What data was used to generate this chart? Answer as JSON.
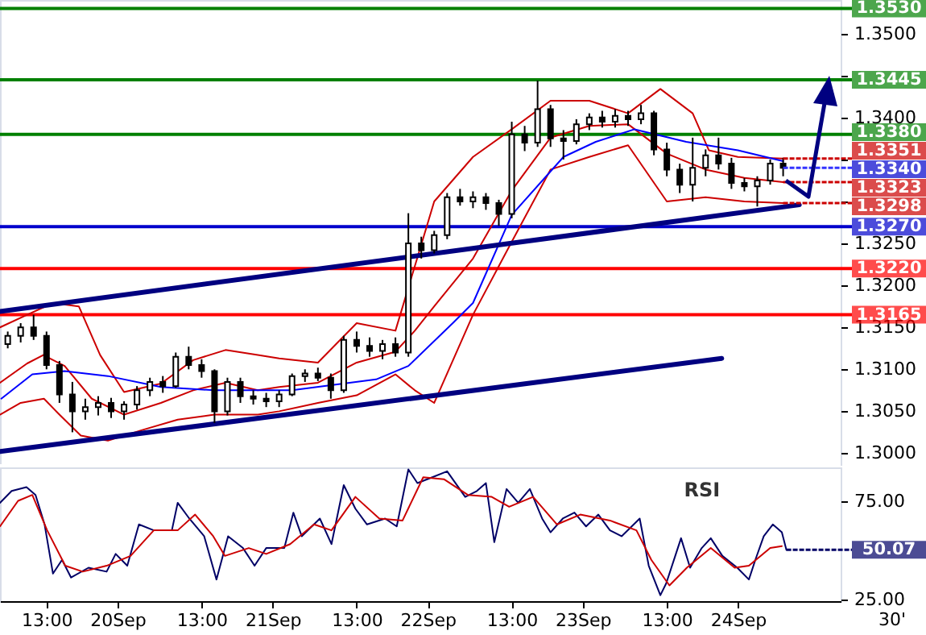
{
  "chart_data": [
    {
      "type": "candlestick",
      "tick_labels": "y",
      "xlim": [
        "--09-19T05:48",
        "--09-24T15:54"
      ],
      "ylim": [
        1.2987,
        1.354
      ],
      "yticks": [
        {
          "value": 1.3,
          "label": "1.3000"
        },
        {
          "value": 1.305,
          "label": "1.3050"
        },
        {
          "value": 1.31,
          "label": "1.3100"
        },
        {
          "value": 1.315,
          "label": "1.3150"
        },
        {
          "value": 1.32,
          "label": "1.3200"
        },
        {
          "value": 1.325,
          "label": "1.3250"
        },
        {
          "value": 1.33,
          "label": null
        },
        {
          "value": 1.335,
          "label": null
        },
        {
          "value": 1.34,
          "label": "1.3400"
        },
        {
          "value": 1.345,
          "label": null
        },
        {
          "value": 1.35,
          "label": "1.3500"
        }
      ],
      "x": [
        "--09-19T07:00",
        "--09-19T09:00",
        "--09-19T11:00",
        "--09-19T13:00",
        "--09-19T15:00",
        "--09-19T17:00",
        "--09-19T19:00",
        "--09-19T21:00",
        "--09-19T23:00",
        "--09-20T01:00",
        "--09-20T03:00",
        "--09-20T05:00",
        "--09-20T07:00",
        "--09-20T09:00",
        "--09-20T11:00",
        "--09-20T13:00",
        "--09-20T15:00",
        "--09-20T17:00",
        "--09-20T19:00",
        "--09-20T21:00",
        "--09-20T23:00",
        "--09-21T01:00",
        "--09-21T03:00",
        "--09-21T05:00",
        "--09-21T07:00",
        "--09-21T09:00",
        "--09-21T11:00",
        "--09-21T13:00",
        "--09-21T15:00",
        "--09-21T17:00",
        "--09-21T19:00",
        "--09-21T21:00",
        "--09-21T23:00",
        "--09-22T01:00",
        "--09-22T03:00",
        "--09-22T05:00",
        "--09-22T07:00",
        "--09-22T09:00",
        "--09-22T11:00",
        "--09-22T13:00",
        "--09-22T15:00",
        "--09-22T17:00",
        "--09-22T19:00",
        "--09-22T21:00",
        "--09-22T23:00",
        "--09-23T01:00",
        "--09-23T03:00",
        "--09-23T05:00",
        "--09-23T07:00",
        "--09-23T09:00",
        "--09-23T11:00",
        "--09-23T13:00",
        "--09-23T15:00",
        "--09-23T17:00",
        "--09-23T19:00",
        "--09-23T21:00",
        "--09-23T23:00",
        "--09-24T01:00",
        "--09-24T03:00",
        "--09-24T05:00",
        "--09-24T07:00"
      ],
      "ohlc": [
        [
          1.313,
          1.3145,
          1.3125,
          1.314
        ],
        [
          1.314,
          1.3155,
          1.3132,
          1.315
        ],
        [
          1.315,
          1.3165,
          1.3135,
          1.314
        ],
        [
          1.314,
          1.3145,
          1.31,
          1.3105
        ],
        [
          1.3105,
          1.311,
          1.306,
          1.307
        ],
        [
          1.307,
          1.3085,
          1.3025,
          1.305
        ],
        [
          1.305,
          1.3065,
          1.304,
          1.3055
        ],
        [
          1.3055,
          1.3068,
          1.3045,
          1.306
        ],
        [
          1.306,
          1.3066,
          1.3042,
          1.305
        ],
        [
          1.305,
          1.3062,
          1.304,
          1.3058
        ],
        [
          1.3058,
          1.308,
          1.3052,
          1.3075
        ],
        [
          1.3075,
          1.309,
          1.3068,
          1.3085
        ],
        [
          1.3085,
          1.3092,
          1.3072,
          1.308
        ],
        [
          1.308,
          1.312,
          1.3078,
          1.3115
        ],
        [
          1.3115,
          1.3127,
          1.31,
          1.3105
        ],
        [
          1.3105,
          1.3112,
          1.309,
          1.3098
        ],
        [
          1.3098,
          1.31,
          1.3036,
          1.305
        ],
        [
          1.305,
          1.309,
          1.3045,
          1.3085
        ],
        [
          1.3085,
          1.309,
          1.306,
          1.3068
        ],
        [
          1.3068,
          1.3075,
          1.3058,
          1.3065
        ],
        [
          1.3065,
          1.3072,
          1.3055,
          1.3062
        ],
        [
          1.3062,
          1.3075,
          1.3055,
          1.307
        ],
        [
          1.307,
          1.3095,
          1.3068,
          1.3092
        ],
        [
          1.3092,
          1.31,
          1.3085,
          1.3095
        ],
        [
          1.3095,
          1.3102,
          1.3086,
          1.309
        ],
        [
          1.309,
          1.3095,
          1.3065,
          1.3075
        ],
        [
          1.3075,
          1.314,
          1.3072,
          1.3135
        ],
        [
          1.3135,
          1.3145,
          1.312,
          1.3128
        ],
        [
          1.3128,
          1.3138,
          1.3115,
          1.3122
        ],
        [
          1.3122,
          1.3135,
          1.3112,
          1.313
        ],
        [
          1.313,
          1.3138,
          1.3115,
          1.312
        ],
        [
          1.312,
          1.3286,
          1.3115,
          1.325
        ],
        [
          1.325,
          1.3258,
          1.3232,
          1.3242
        ],
        [
          1.3242,
          1.3265,
          1.3238,
          1.326
        ],
        [
          1.326,
          1.331,
          1.3255,
          1.3305
        ],
        [
          1.3305,
          1.3315,
          1.3295,
          1.33
        ],
        [
          1.33,
          1.3312,
          1.3292,
          1.3305
        ],
        [
          1.3305,
          1.331,
          1.329,
          1.3298
        ],
        [
          1.3298,
          1.3302,
          1.3271,
          1.3285
        ],
        [
          1.3285,
          1.3395,
          1.328,
          1.338
        ],
        [
          1.338,
          1.339,
          1.336,
          1.337
        ],
        [
          1.337,
          1.3444,
          1.3365,
          1.341
        ],
        [
          1.341,
          1.3415,
          1.3365,
          1.3375
        ],
        [
          1.3375,
          1.3385,
          1.335,
          1.3372
        ],
        [
          1.3372,
          1.3398,
          1.3368,
          1.3392
        ],
        [
          1.3392,
          1.3405,
          1.3385,
          1.34
        ],
        [
          1.34,
          1.3408,
          1.3388,
          1.3395
        ],
        [
          1.3395,
          1.341,
          1.3388,
          1.3402
        ],
        [
          1.3402,
          1.3408,
          1.339,
          1.3398
        ],
        [
          1.3398,
          1.3415,
          1.3392,
          1.3405
        ],
        [
          1.3405,
          1.3408,
          1.3355,
          1.3362
        ],
        [
          1.3362,
          1.337,
          1.333,
          1.3338
        ],
        [
          1.3338,
          1.3345,
          1.331,
          1.332
        ],
        [
          1.332,
          1.3376,
          1.33,
          1.334
        ],
        [
          1.334,
          1.3362,
          1.333,
          1.3355
        ],
        [
          1.3355,
          1.3376,
          1.3338,
          1.3345
        ],
        [
          1.3345,
          1.3352,
          1.3315,
          1.3322
        ],
        [
          1.3322,
          1.3328,
          1.3312,
          1.3318
        ],
        [
          1.3318,
          1.333,
          1.3294,
          1.3325
        ],
        [
          1.3325,
          1.335,
          1.332,
          1.3345
        ],
        [
          1.3345,
          1.3352,
          1.333,
          1.334
        ]
      ],
      "series": [
        {
          "type": "line",
          "color": "#cc0000",
          "x": [
            "--09-19T05:48",
            "--09-19T10:00",
            "--09-19T14:00",
            "--09-19T18:00",
            "--09-19T21:18",
            "--09-20T01:00",
            "--09-20T06:42",
            "--09-20T11:42",
            "--09-20T16:42",
            "--09-20T21:42",
            "--09-21T01:00",
            "--09-21T07:00",
            "--09-21T13:00",
            "--09-21T19:00",
            "--09-21T22:00",
            "--09-22T01:00",
            "--09-22T07:00",
            "--09-22T13:00",
            "--09-22T19:00",
            "--09-23T01:00",
            "--09-23T07:00",
            "--09-23T12:00",
            "--09-23T17:00",
            "--09-23T19:30",
            "--09-24T00:00",
            "--09-24T07:00"
          ],
          "values": [
            1.315,
            1.3165,
            1.3179,
            1.3175,
            1.3117,
            1.3073,
            1.3083,
            1.3111,
            1.3123,
            1.3117,
            1.3113,
            1.3108,
            1.3155,
            1.3146,
            1.3223,
            1.33,
            1.3353,
            1.3386,
            1.342,
            1.342,
            1.3405,
            1.3434,
            1.3405,
            1.3361,
            1.3353,
            1.3351
          ],
          "value_labels": [
            null,
            null,
            null,
            null,
            null,
            null,
            null,
            null,
            null,
            null,
            null,
            null,
            null,
            null,
            null,
            null,
            null,
            null,
            null,
            null,
            null,
            null,
            null,
            null,
            null,
            "1.3351"
          ]
        },
        {
          "type": "line",
          "color": "#cc0000",
          "x": [
            "--09-19T05:48",
            "--09-19T10:00",
            "--09-19T12:30",
            "--09-19T15:48",
            "--09-19T20:00",
            "--09-20T01:00",
            "--09-20T06:42",
            "--09-20T11:42",
            "--09-20T16:42",
            "--09-20T21:42",
            "--09-21T01:00",
            "--09-21T07:00",
            "--09-21T13:00",
            "--09-21T19:00",
            "--09-21T22:00",
            "--09-22T01:00",
            "--09-22T07:00",
            "--09-22T13:00",
            "--09-22T19:00",
            "--09-23T01:00",
            "--09-23T07:00",
            "--09-23T13:00",
            "--09-23T19:00",
            "--09-24T01:00",
            "--09-24T07:00"
          ],
          "values": [
            1.3084,
            1.3107,
            1.3117,
            1.3104,
            1.3065,
            1.3046,
            1.306,
            1.3075,
            1.3084,
            1.3075,
            1.3079,
            1.3084,
            1.3108,
            1.3121,
            1.3146,
            1.3175,
            1.3232,
            1.3313,
            1.3376,
            1.339,
            1.3392,
            1.3357,
            1.3338,
            1.3328,
            1.3323
          ],
          "value_labels": [
            null,
            null,
            null,
            null,
            null,
            null,
            null,
            null,
            null,
            null,
            null,
            null,
            null,
            null,
            null,
            null,
            null,
            null,
            null,
            null,
            null,
            null,
            null,
            null,
            "1.3323"
          ]
        },
        {
          "type": "line",
          "color": "#cc0000",
          "x": [
            "--09-19T05:48",
            "--09-19T09:00",
            "--09-19T12:36",
            "--09-19T15:00",
            "--09-19T18:18",
            "--09-19T22:30",
            "--09-20T03:30",
            "--09-20T09:18",
            "--09-20T15:00",
            "--09-20T21:42",
            "--09-21T01:00",
            "--09-21T07:00",
            "--09-21T13:00",
            "--09-21T19:00",
            "--09-21T22:00",
            "--09-22T01:00",
            "--09-22T07:00",
            "--09-22T13:00",
            "--09-22T19:00",
            "--09-23T01:00",
            "--09-23T07:00",
            "--09-23T13:00",
            "--09-23T19:00",
            "--09-24T01:00",
            "--09-24T07:00"
          ],
          "values": [
            1.3046,
            1.306,
            1.3065,
            1.3046,
            1.3021,
            1.3015,
            1.3027,
            1.304,
            1.3046,
            1.3046,
            1.305,
            1.306,
            1.3069,
            1.3094,
            1.3075,
            1.306,
            1.3165,
            1.3252,
            1.3338,
            1.3353,
            1.3367,
            1.33,
            1.3305,
            1.33,
            1.3298
          ],
          "value_labels": [
            null,
            null,
            null,
            null,
            null,
            null,
            null,
            null,
            null,
            null,
            null,
            null,
            null,
            null,
            null,
            null,
            null,
            null,
            null,
            null,
            null,
            null,
            null,
            null,
            "1.3298"
          ]
        },
        {
          "type": "line",
          "color": "#0000ff",
          "x": [
            "--09-19T06:00",
            "--09-19T10:48",
            "--09-19T15:48",
            "--09-19T22:30",
            "--09-20T06:42",
            "--09-20T15:00",
            "--09-21T03:00",
            "--09-21T16:00",
            "--09-21T21:00",
            "--09-22T04:00",
            "--09-22T07:00",
            "--09-22T13:00",
            "--09-22T21:00",
            "--09-23T02:00",
            "--09-23T08:00",
            "--09-23T16:00",
            "--09-24T00:00",
            "--09-24T07:00"
          ],
          "values": [
            1.3065,
            1.3094,
            1.3098,
            1.3092,
            1.3079,
            1.3075,
            1.3075,
            1.3088,
            1.3104,
            1.3156,
            1.3179,
            1.3284,
            1.3353,
            1.3371,
            1.3386,
            1.3371,
            1.3361,
            1.3348
          ]
        },
        {
          "type": "line",
          "color": "#000080",
          "x": [
            "--09-19T05:48",
            "--09-24T09:30"
          ],
          "values": [
            1.3169,
            1.3296
          ]
        },
        {
          "type": "line",
          "color": "#000080",
          "x": [
            "--09-19T05:48",
            "--09-23T21:30"
          ],
          "values": [
            1.3002,
            1.3113
          ]
        }
      ],
      "ref_lines": [
        {
          "axis": "y",
          "value": 1.353,
          "label": "1.3530",
          "color": "#008000"
        },
        {
          "axis": "y",
          "value": 1.3445,
          "label": "1.3445",
          "color": "#008000"
        },
        {
          "axis": "y",
          "value": 1.338,
          "label": "1.3380",
          "color": "#008000"
        },
        {
          "axis": "y",
          "value": 1.327,
          "label": "1.3270",
          "color": "#0000cc"
        },
        {
          "axis": "y",
          "value": 1.322,
          "label": "1.3220",
          "color": "#ff0000"
        },
        {
          "axis": "y",
          "value": 1.3165,
          "label": "1.3165",
          "color": "#ff0000"
        }
      ],
      "annotations": [
        {
          "text": "1.3340",
          "x": "--09-24T07:00",
          "y": 1.334
        }
      ]
    },
    {
      "type": "line",
      "xlim": [
        "--09-19T05:48",
        "--09-24T15:54"
      ],
      "ylim": [
        24,
        92
      ],
      "xlabel": "30'",
      "yticks": [
        {
          "value": 25,
          "label": "25.00"
        },
        {
          "value": 75,
          "label": "75.00"
        }
      ],
      "xticks": [
        {
          "value": "--09-19T13:00",
          "label": "13:00"
        },
        {
          "value": "--09-20",
          "label": "20Sep"
        },
        {
          "value": "--09-20T13:00",
          "label": "13:00"
        },
        {
          "value": "--09-21",
          "label": "21Sep"
        },
        {
          "value": "--09-21T13:00",
          "label": "13:00"
        },
        {
          "value": "--09-22",
          "label": "22Sep"
        },
        {
          "value": "--09-22T13:00",
          "label": "13:00"
        },
        {
          "value": "--09-23",
          "label": "23Sep"
        },
        {
          "value": "--09-23T13:00",
          "label": "13:00"
        },
        {
          "value": "--09-24",
          "label": "24Sep"
        }
      ],
      "series": [
        {
          "type": "line",
          "color": "#000066",
          "x": [
            "--09-19T05:48",
            "--09-19T07:36",
            "--09-19T09:54",
            "--09-19T11:18",
            "--09-19T12:42",
            "--09-19T14:00",
            "--09-19T15:24",
            "--09-19T16:48",
            "--09-19T19:30",
            "--09-19T22:18",
            "--09-19T23:42",
            "--09-20T01:30",
            "--09-20T03:18",
            "--09-20T05:36",
            "--09-20T08:24",
            "--09-20T09:18",
            "--09-20T11:06",
            "--09-20T13:24",
            "--09-20T15:18",
            "--09-20T17:06",
            "--09-20T19:24",
            "--09-20T21:12",
            "--09-20T23:00",
            "--09-21T01:48",
            "--09-21T03:12",
            "--09-21T04:30",
            "--09-21T07:18",
            "--09-21T09:06",
            "--09-21T11:00",
            "--09-21T12:48",
            "--09-21T14:36",
            "--09-21T17:24",
            "--09-21T19:12",
            "--09-21T21:00",
            "--09-21T22:24",
            "--09-22T00:42",
            "--09-22T03:00",
            "--09-22T05:48",
            "--09-22T07:36",
            "--09-22T09:00",
            "--09-22T10:18",
            "--09-22T12:12",
            "--09-22T14:00",
            "--09-22T15:48",
            "--09-22T17:42",
            "--09-22T19:00",
            "--09-22T20:54",
            "--09-22T22:42",
            "--09-23T00:30",
            "--09-23T02:24",
            "--09-23T04:12",
            "--09-23T06:00",
            "--09-23T08:48",
            "--09-23T10:12",
            "--09-23T12:00",
            "--09-23T12:54",
            "--09-23T14:18",
            "--09-23T15:12",
            "--09-23T16:36",
            "--09-23T18:24",
            "--09-23T19:48",
            "--09-23T21:36",
            "--09-23T23:54",
            "--09-24T01:42",
            "--09-24T02:42",
            "--09-24T04:00",
            "--09-24T05:24",
            "--09-24T06:48",
            "--09-24T07:30"
          ],
          "values": [
            74,
            80,
            82,
            78,
            63,
            38,
            45,
            36,
            41,
            39,
            48,
            42,
            63,
            60,
            60,
            74,
            66,
            57,
            35,
            57,
            51,
            42,
            51,
            51,
            69,
            57,
            66,
            53,
            83,
            71,
            63,
            66,
            62,
            91,
            84,
            87,
            90,
            77,
            80,
            84,
            54,
            81,
            74,
            81,
            66,
            59,
            66,
            69,
            62,
            68,
            60,
            57,
            66,
            42,
            27,
            33,
            47,
            56,
            41,
            51,
            56,
            47,
            41,
            35,
            45,
            57,
            63,
            59,
            50.07
          ],
          "value_labels": [
            null,
            null,
            null,
            null,
            null,
            null,
            null,
            null,
            null,
            null,
            null,
            null,
            null,
            null,
            null,
            null,
            null,
            null,
            null,
            null,
            null,
            null,
            null,
            null,
            null,
            null,
            null,
            null,
            null,
            null,
            null,
            null,
            null,
            null,
            null,
            null,
            null,
            null,
            null,
            null,
            null,
            null,
            null,
            null,
            null,
            null,
            null,
            null,
            null,
            null,
            null,
            null,
            null,
            null,
            null,
            null,
            null,
            null,
            null,
            null,
            null,
            null,
            null,
            null,
            null,
            null,
            null,
            null,
            "50.07"
          ]
        },
        {
          "type": "line",
          "color": "#cc0000",
          "x": [
            "--09-19T05:48",
            "--09-19T08:36",
            "--09-19T10:48",
            "--09-19T13:06",
            "--09-19T15:54",
            "--09-19T18:36",
            "--09-19T22:18",
            "--09-20T02:00",
            "--09-20T05:36",
            "--09-20T09:18",
            "--09-20T12:00",
            "--09-20T14:48",
            "--09-20T16:36",
            "--09-20T20:18",
            "--09-20T23:00",
            "--09-21T02:42",
            "--09-21T06:24",
            "--09-21T09:06",
            "--09-21T12:48",
            "--09-21T16:30",
            "--09-21T20:06",
            "--09-21T23:18",
            "--09-22T02:30",
            "--09-22T06:12",
            "--09-22T09:54",
            "--09-22T12:36",
            "--09-22T16:18",
            "--09-22T20:00",
            "--09-22T23:36",
            "--09-23T04:12",
            "--09-23T08:18",
            "--09-23T10:36",
            "--09-23T13:24",
            "--09-23T16:06",
            "--09-23T19:48",
            "--09-23T23:30",
            "--09-24T01:42",
            "--09-24T05:00",
            "--09-24T06:48"
          ],
          "values": [
            62,
            75,
            78,
            60,
            42,
            39,
            42,
            47,
            60,
            60,
            68,
            57,
            47,
            51,
            48,
            53,
            63,
            60,
            77,
            66,
            65,
            87,
            86,
            78,
            77,
            72,
            77,
            63,
            68,
            65,
            60,
            45,
            32,
            41,
            51,
            41,
            42,
            51,
            52
          ]
        }
      ],
      "annotations": [
        "RSI"
      ]
    }
  ]
}
